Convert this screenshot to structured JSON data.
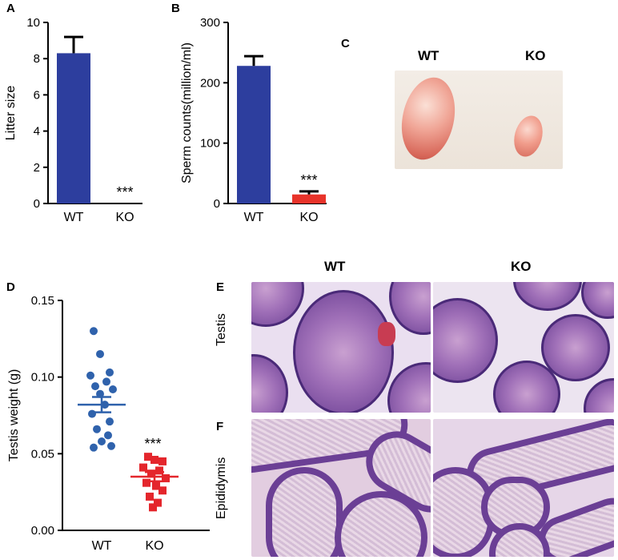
{
  "panels": {
    "A": {
      "label": "A",
      "chart_data": {
        "type": "bar",
        "categories": [
          "WT",
          "KO"
        ],
        "values": [
          8.3,
          0
        ],
        "errors": [
          0.9,
          0
        ],
        "ylabel": "Litter size",
        "ylim": [
          0,
          10
        ],
        "yticks": [
          "0",
          "2",
          "4",
          "6",
          "8",
          "10"
        ],
        "colors": [
          "#2d3e9e",
          "#e8332a"
        ],
        "annotation": "***"
      }
    },
    "B": {
      "label": "B",
      "chart_data": {
        "type": "bar",
        "categories": [
          "WT",
          "KO"
        ],
        "values": [
          228,
          15
        ],
        "errors": [
          16,
          5
        ],
        "ylabel": "Sperm counts(million/ml)",
        "ylim": [
          0,
          300
        ],
        "yticks": [
          "0",
          "100",
          "200",
          "300"
        ],
        "colors": [
          "#2d3e9e",
          "#e8332a"
        ],
        "annotation": "***"
      }
    },
    "C": {
      "label": "C",
      "wt": "WT",
      "ko": "KO"
    },
    "D": {
      "label": "D",
      "chart_data": {
        "type": "scatter",
        "categories": [
          "WT",
          "KO"
        ],
        "ylabel": "Testis weight (g)",
        "ylim": [
          0,
          0.15
        ],
        "yticks": [
          "0.00",
          "0.05",
          "0.10",
          "0.15"
        ],
        "colors": [
          "#2f62ac",
          "#e4262c"
        ],
        "annotation": "***",
        "series": [
          {
            "category": "WT",
            "mean": 0.082,
            "sem": 0.005,
            "points": [
              [
                -0.1,
                0.13
              ],
              [
                -0.02,
                0.115
              ],
              [
                0.1,
                0.103
              ],
              [
                -0.14,
                0.101
              ],
              [
                0.06,
                0.097
              ],
              [
                -0.08,
                0.094
              ],
              [
                0.14,
                0.092
              ],
              [
                -0.02,
                0.089
              ],
              [
                0.04,
                0.082
              ],
              [
                -0.12,
                0.076
              ],
              [
                0.1,
                0.071
              ],
              [
                -0.06,
                0.066
              ],
              [
                0.08,
                0.062
              ],
              [
                0.0,
                0.058
              ],
              [
                -0.1,
                0.054
              ],
              [
                0.12,
                0.055
              ]
            ]
          },
          {
            "category": "KO",
            "mean": 0.035,
            "sem": 0.003,
            "points": [
              [
                -0.08,
                0.048
              ],
              [
                0.0,
                0.046
              ],
              [
                0.1,
                0.045
              ],
              [
                -0.14,
                0.041
              ],
              [
                0.06,
                0.039
              ],
              [
                -0.04,
                0.037
              ],
              [
                0.14,
                0.034
              ],
              [
                -0.1,
                0.031
              ],
              [
                0.02,
                0.029
              ],
              [
                0.1,
                0.026
              ],
              [
                -0.06,
                0.022
              ],
              [
                0.04,
                0.018
              ],
              [
                -0.02,
                0.015
              ]
            ]
          }
        ]
      }
    },
    "E": {
      "label": "E",
      "row": "Testis",
      "col_wt": "WT",
      "col_ko": "KO"
    },
    "F": {
      "label": "F",
      "row": "Epididymis"
    }
  }
}
